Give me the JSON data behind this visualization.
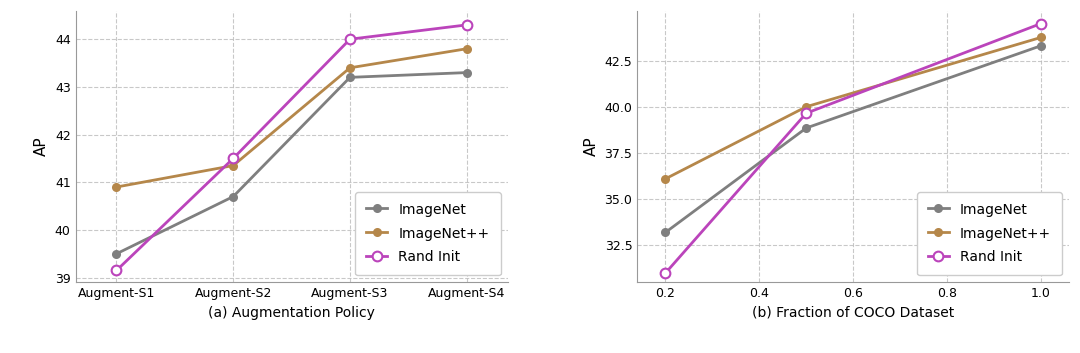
{
  "left": {
    "xlabel": "(a) Augmentation Policy",
    "ylabel": "AP",
    "xticks": [
      "Augment-S1",
      "Augment-S2",
      "Augment-S3",
      "Augment-S4"
    ],
    "ylim": [
      38.9,
      44.6
    ],
    "yticks": [
      39,
      40,
      41,
      42,
      43,
      44
    ],
    "series": {
      "ImageNet": {
        "y": [
          39.5,
          40.7,
          43.2,
          43.3
        ],
        "color": "#7f7f7f",
        "marker": "o",
        "markersize": 5,
        "linewidth": 2.0,
        "open_marker": false
      },
      "ImageNet++": {
        "y": [
          40.9,
          41.35,
          43.4,
          43.8
        ],
        "color": "#b5874a",
        "marker": "o",
        "markersize": 5,
        "linewidth": 2.0,
        "open_marker": false
      },
      "Rand Init": {
        "y": [
          39.15,
          41.5,
          44.0,
          44.3
        ],
        "color": "#bb44bb",
        "marker": "o",
        "markersize": 7,
        "linewidth": 2.0,
        "open_marker": true
      }
    },
    "legend_loc": "lower right",
    "legend_fontsize": 10
  },
  "right": {
    "xlabel": "(b) Fraction of COCO Dataset",
    "ylabel": "AP",
    "x": [
      0.2,
      0.5,
      1.0
    ],
    "xlim": [
      0.14,
      1.06
    ],
    "xticks": [
      0.2,
      0.4,
      0.6,
      0.8,
      1.0
    ],
    "ylim": [
      30.5,
      45.2
    ],
    "yticks": [
      32.5,
      35.0,
      37.5,
      40.0,
      42.5
    ],
    "series": {
      "ImageNet": {
        "y": [
          33.2,
          38.85,
          43.3
        ],
        "color": "#7f7f7f",
        "marker": "o",
        "markersize": 5,
        "linewidth": 2.0,
        "open_marker": false
      },
      "ImageNet++": {
        "y": [
          36.1,
          40.0,
          43.75
        ],
        "color": "#b5874a",
        "marker": "o",
        "markersize": 5,
        "linewidth": 2.0,
        "open_marker": false
      },
      "Rand Init": {
        "y": [
          31.0,
          39.65,
          44.5
        ],
        "color": "#bb44bb",
        "marker": "o",
        "markersize": 7,
        "linewidth": 2.0,
        "open_marker": true
      }
    },
    "legend_loc": "lower right",
    "legend_fontsize": 10
  },
  "background_color": "#ffffff",
  "grid_color": "#bbbbbb",
  "grid_alpha": 0.8,
  "grid_linestyle": "--"
}
